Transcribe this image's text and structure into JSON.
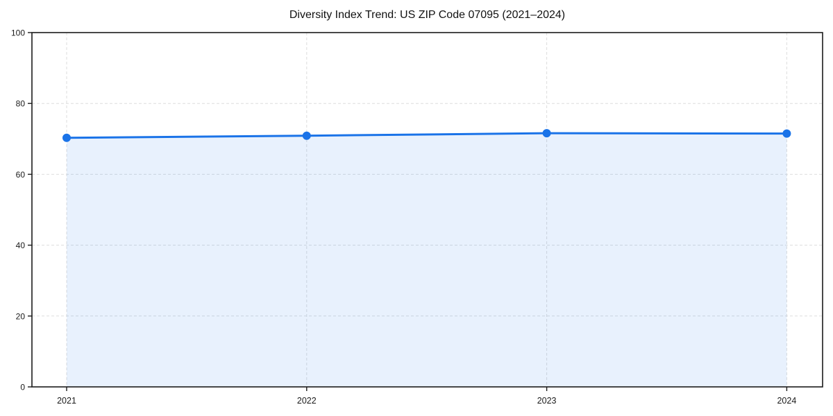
{
  "title": "Diversity Index Trend: US ZIP Code 07095 (2021–2024)",
  "chart_data": {
    "type": "line",
    "title": "Diversity Index Trend: US ZIP Code 07095 (2021–2024)",
    "categories": [
      "2021",
      "2022",
      "2023",
      "2024"
    ],
    "series": [
      {
        "name": "Diversity Index",
        "values": [
          70.3,
          70.9,
          71.6,
          71.5
        ]
      }
    ],
    "xlabel": "",
    "ylabel": "",
    "ylim": [
      0,
      100
    ],
    "yticks": [
      0,
      20,
      40,
      60,
      80,
      100
    ],
    "grid": true,
    "grid_style": "dashed",
    "legend": false,
    "area_fill": true,
    "marker": "circle",
    "colors": {
      "line": "#1a73e8",
      "marker": "#1a73e8",
      "area_fill": "#1a73e8",
      "area_fill_opacity": 0.1,
      "grid": "#dddddd",
      "axis": "#1a1a1a",
      "text": "#1a1a1a",
      "background": "#ffffff"
    }
  }
}
